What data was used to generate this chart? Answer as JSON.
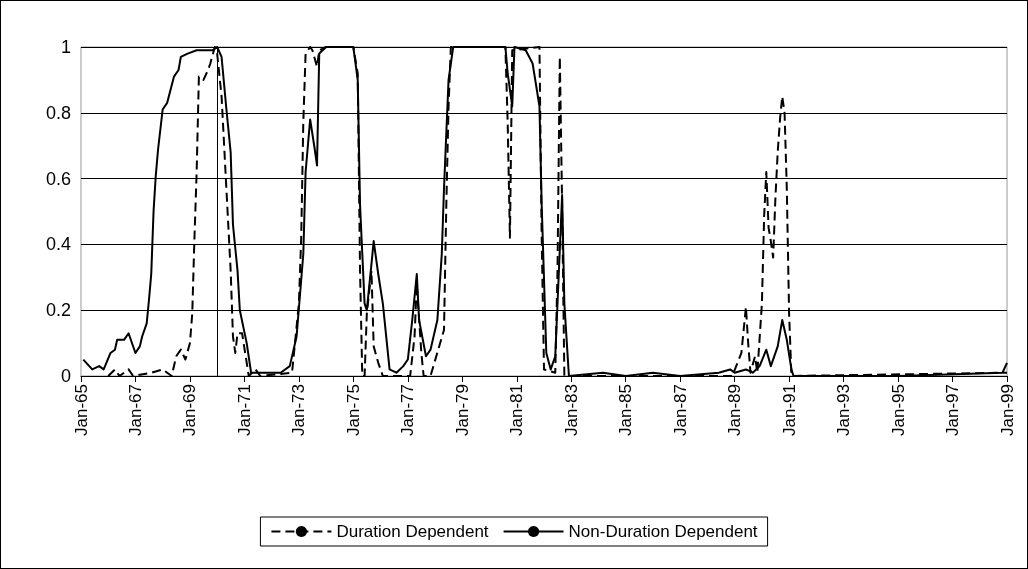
{
  "chart_data": {
    "type": "line",
    "xlim": [
      "1965-01",
      "1999-01"
    ],
    "ylim": [
      0,
      1
    ],
    "yticks": [
      0,
      0.2,
      0.4,
      0.6,
      0.8,
      1
    ],
    "xticks": [
      {
        "value": "1965-01",
        "label": "Jan-65"
      },
      {
        "value": "1967-01",
        "label": "Jan-67"
      },
      {
        "value": "1969-01",
        "label": "Jan-69"
      },
      {
        "value": "1971-01",
        "label": "Jan-71"
      },
      {
        "value": "1973-01",
        "label": "Jan-73"
      },
      {
        "value": "1975-01",
        "label": "Jan-75"
      },
      {
        "value": "1977-01",
        "label": "Jan-77"
      },
      {
        "value": "1979-01",
        "label": "Jan-79"
      },
      {
        "value": "1981-01",
        "label": "Jan-81"
      },
      {
        "value": "1983-01",
        "label": "Jan-83"
      },
      {
        "value": "1985-01",
        "label": "Jan-85"
      },
      {
        "value": "1987-01",
        "label": "Jan-87"
      },
      {
        "value": "1989-01",
        "label": "Jan-89"
      },
      {
        "value": "1991-01",
        "label": "Jan-91"
      },
      {
        "value": "1993-01",
        "label": "Jan-93"
      },
      {
        "value": "1995-01",
        "label": "Jan-95"
      },
      {
        "value": "1997-01",
        "label": "Jan-97"
      },
      {
        "value": "1999-01",
        "label": "Jan-99"
      }
    ],
    "grid": "y",
    "legend": "bottom",
    "marker": "none",
    "series": [
      {
        "name": "Duration Dependent",
        "color": "#000000",
        "line_style": "dashed",
        "x": [
          "1966-01",
          "1966-04",
          "1966-06",
          "1966-10",
          "1966-12",
          "1967-08",
          "1968-01",
          "1968-05",
          "1968-07",
          "1968-09",
          "1968-11",
          "1969-01",
          "1969-02",
          "1969-03",
          "1969-04",
          "1969-05",
          "1969-07",
          "1969-09",
          "1969-10",
          "1969-12",
          "1970-01",
          "1970-03",
          "1970-07",
          "1970-08",
          "1970-09",
          "1970-10",
          "1970-12",
          "1971-03",
          "1971-06",
          "1971-08",
          "1972-10",
          "1973-01",
          "1973-02",
          "1973-03",
          "1973-04",
          "1973-06",
          "1973-07",
          "1973-09",
          "1973-10",
          "1974-01",
          "1975-01",
          "1975-03",
          "1975-04",
          "1975-05",
          "1975-06",
          "1975-07",
          "1975-09",
          "1975-10",
          "1975-12",
          "1976-02",
          "1977-02",
          "1977-04",
          "1977-05",
          "1977-07",
          "1977-08",
          "1977-11",
          "1978-05",
          "1978-06",
          "1978-07",
          "1978-08",
          "1980-08",
          "1980-09",
          "1980-10",
          "1980-11",
          "1981-11",
          "1981-12",
          "1982-01",
          "1982-06",
          "1982-07",
          "1982-08",
          "1982-09",
          "1982-10",
          "1988-12",
          "1989-04",
          "1989-06",
          "1989-07",
          "1989-08",
          "1989-10",
          "1989-11",
          "1990-01",
          "1990-02",
          "1990-03",
          "1990-04",
          "1990-05",
          "1990-06",
          "1990-07",
          "1990-08",
          "1990-09",
          "1990-10",
          "1990-11",
          "1990-12",
          "1991-01",
          "1991-02",
          "1999-01"
        ],
        "values": [
          0,
          0.02,
          0,
          0.02,
          0,
          0.01,
          0.02,
          0,
          0.06,
          0.08,
          0.05,
          0.1,
          0.19,
          0.41,
          0.62,
          0.91,
          0.9,
          0.93,
          0.95,
          1,
          0.98,
          0.85,
          0.32,
          0.12,
          0.07,
          0.13,
          0.13,
          0,
          0.02,
          0,
          0.01,
          0.22,
          0.42,
          0.77,
          0.98,
          1,
          0.99,
          0.94,
          0.99,
          1,
          1,
          0.92,
          0.32,
          0,
          0,
          0.19,
          0.32,
          0.09,
          0.04,
          0,
          0,
          0.12,
          0.28,
          0.07,
          0,
          0,
          0.14,
          0.52,
          0.82,
          1,
          1,
          0.77,
          0.42,
          0.99,
          1,
          0.42,
          0.02,
          0.01,
          0.32,
          0.97,
          0.52,
          0,
          0,
          0.07,
          0.21,
          0.1,
          0.01,
          0.06,
          0.01,
          0.22,
          0.49,
          0.62,
          0.45,
          0.41,
          0.36,
          0.54,
          0.68,
          0.78,
          0.85,
          0.8,
          0.57,
          0.19,
          0,
          0.01
        ]
      },
      {
        "name": "Non-Duration Dependent",
        "color": "#000000",
        "line_style": "solid",
        "x": [
          "1965-02",
          "1965-06",
          "1965-09",
          "1965-11",
          "1966-02",
          "1966-04",
          "1966-05",
          "1966-08",
          "1966-10",
          "1967-01",
          "1967-03",
          "1967-04",
          "1967-06",
          "1967-07",
          "1967-08",
          "1967-09",
          "1967-10",
          "1967-11",
          "1968-01",
          "1968-03",
          "1968-06",
          "1968-08",
          "1968-09",
          "1968-12",
          "1969-04",
          "1969-07",
          "1969-11",
          "1970-01",
          "1970-03",
          "1970-05",
          "1970-07",
          "1970-08",
          "1970-10",
          "1970-11",
          "1971-02",
          "1971-04",
          "1971-09",
          "1972-05",
          "1972-09",
          "1972-12",
          "1973-03",
          "1973-04",
          "1973-06",
          "1973-08",
          "1973-09",
          "1973-10",
          "1974-01",
          "1975-01",
          "1975-03",
          "1975-04",
          "1975-06",
          "1975-07",
          "1975-09",
          "1975-10",
          "1975-12",
          "1976-02",
          "1976-05",
          "1976-08",
          "1976-11",
          "1977-01",
          "1977-03",
          "1977-05",
          "1977-06",
          "1977-09",
          "1977-11",
          "1978-02",
          "1978-04",
          "1978-05",
          "1978-07",
          "1978-09",
          "1980-08",
          "1980-09",
          "1980-11",
          "1980-12",
          "1981-05",
          "1981-08",
          "1981-11",
          "1981-12",
          "1982-02",
          "1982-04",
          "1982-06",
          "1982-09",
          "1982-10",
          "1982-12",
          "1984-03",
          "1985-01",
          "1986-01",
          "1987-01",
          "1988-06",
          "1988-11",
          "1989-01",
          "1989-06",
          "1989-09",
          "1989-12",
          "1990-03",
          "1990-05",
          "1990-08",
          "1990-10",
          "1990-12",
          "1991-02",
          "1991-03",
          "1995-01",
          "1998-11",
          "1999-01"
        ],
        "values": [
          0.05,
          0.02,
          0.03,
          0.02,
          0.07,
          0.08,
          0.11,
          0.11,
          0.13,
          0.07,
          0.09,
          0.12,
          0.16,
          0.23,
          0.31,
          0.5,
          0.61,
          0.69,
          0.81,
          0.83,
          0.91,
          0.93,
          0.97,
          0.98,
          0.99,
          0.99,
          0.99,
          1,
          0.97,
          0.82,
          0.68,
          0.46,
          0.32,
          0.2,
          0.1,
          0.01,
          0.01,
          0.01,
          0.03,
          0.12,
          0.37,
          0.62,
          0.78,
          0.69,
          0.64,
          0.98,
          1,
          1,
          0.9,
          0.52,
          0.22,
          0.2,
          0.34,
          0.41,
          0.31,
          0.22,
          0.02,
          0.01,
          0.03,
          0.05,
          0.17,
          0.31,
          0.17,
          0.06,
          0.08,
          0.17,
          0.37,
          0.57,
          0.9,
          1,
          1,
          0.92,
          0.82,
          1,
          0.99,
          0.95,
          0.82,
          0.52,
          0.07,
          0.02,
          0.06,
          0.55,
          0.22,
          0,
          0.01,
          0,
          0.01,
          0,
          0.01,
          0.02,
          0.01,
          0.02,
          0.01,
          0.03,
          0.08,
          0.03,
          0.09,
          0.17,
          0.11,
          0.02,
          0,
          0,
          0.01,
          0.04
        ]
      }
    ]
  }
}
